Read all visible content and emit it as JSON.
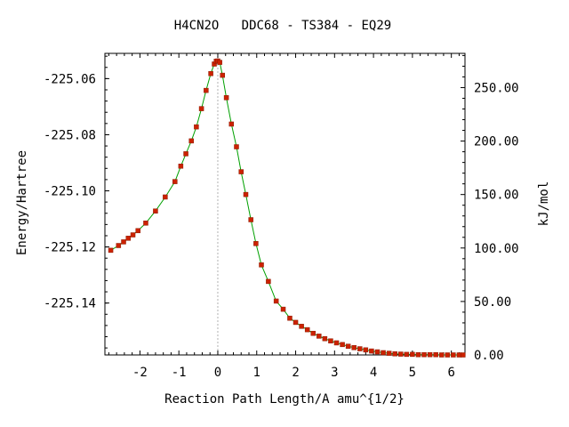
{
  "chart_data": {
    "type": "scatter",
    "title": "H4CN2O   DDC68 - TS384 - EQ29",
    "xlabel": "Reaction Path Length/A amu^{1/2}",
    "ylabel": "Energy/Hartree",
    "y2label": "kJ/mol",
    "xlim": [
      -2.9,
      6.35
    ],
    "ylim": [
      -225.1585,
      -225.051
    ],
    "y2lim": [
      0.0,
      282.0
    ],
    "x_ticks": [
      -2,
      -1,
      0,
      1,
      2,
      3,
      4,
      5,
      6
    ],
    "x_tick_labels": [
      "-2",
      "-1",
      "0",
      "1",
      "2",
      "3",
      "4",
      "5",
      "6"
    ],
    "y_ticks": [
      -225.06,
      -225.08,
      -225.1,
      -225.12,
      -225.14
    ],
    "y_tick_labels": [
      "-225.06",
      "-225.08",
      "-225.10",
      "-225.12",
      "-225.14"
    ],
    "y2_ticks": [
      250,
      200,
      150,
      100,
      50,
      0
    ],
    "y2_tick_labels": [
      "250.00",
      "200.00",
      "150.00",
      "100.00",
      "50.00",
      "0.00"
    ],
    "vertical_reference_x": 0,
    "grid": false,
    "colors": {
      "line": "#00a000",
      "marker": "#cc2200",
      "reference": "#b0b0b0"
    },
    "series": [
      {
        "x": [
          -2.75,
          -2.55,
          -2.42,
          -2.3,
          -2.18,
          -2.05,
          -1.85,
          -1.6,
          -1.35,
          -1.1,
          -0.95,
          -0.82,
          -0.68,
          -0.55,
          -0.42,
          -0.3,
          -0.18,
          -0.09,
          -0.04,
          0.0,
          0.05,
          0.12,
          0.22,
          0.35,
          0.48,
          0.6,
          0.72,
          0.85,
          0.98,
          1.12,
          1.3,
          1.5,
          1.68,
          1.85,
          2.0,
          2.15,
          2.3,
          2.45,
          2.6,
          2.75,
          2.9,
          3.05,
          3.2,
          3.35,
          3.5,
          3.65,
          3.8,
          3.95,
          4.1,
          4.25,
          4.4,
          4.55,
          4.7,
          4.85,
          5.0,
          5.15,
          5.3,
          5.45,
          5.6,
          5.75,
          5.9,
          6.05,
          6.2,
          6.3
        ],
        "y": [
          -225.1212,
          -225.1195,
          -225.1182,
          -225.1169,
          -225.1157,
          -225.1142,
          -225.1115,
          -225.1072,
          -225.1022,
          -225.0967,
          -225.0912,
          -225.0868,
          -225.0822,
          -225.0772,
          -225.0707,
          -225.0642,
          -225.0582,
          -225.0548,
          -225.0538,
          -225.0537,
          -225.0542,
          -225.0588,
          -225.0668,
          -225.0762,
          -225.0843,
          -225.0932,
          -225.1013,
          -225.1103,
          -225.1188,
          -225.1264,
          -225.1323,
          -225.1393,
          -225.1422,
          -225.1454,
          -225.1469,
          -225.1483,
          -225.1495,
          -225.1508,
          -225.1518,
          -225.1527,
          -225.1535,
          -225.1542,
          -225.1548,
          -225.1554,
          -225.1559,
          -225.1563,
          -225.1567,
          -225.1571,
          -225.1574,
          -225.1577,
          -225.1579,
          -225.1581,
          -225.1582,
          -225.1583,
          -225.1583,
          -225.1584,
          -225.1584,
          -225.1584,
          -225.1584,
          -225.1585,
          -225.1585,
          -225.1585,
          -225.1585,
          -225.1585
        ]
      }
    ]
  }
}
